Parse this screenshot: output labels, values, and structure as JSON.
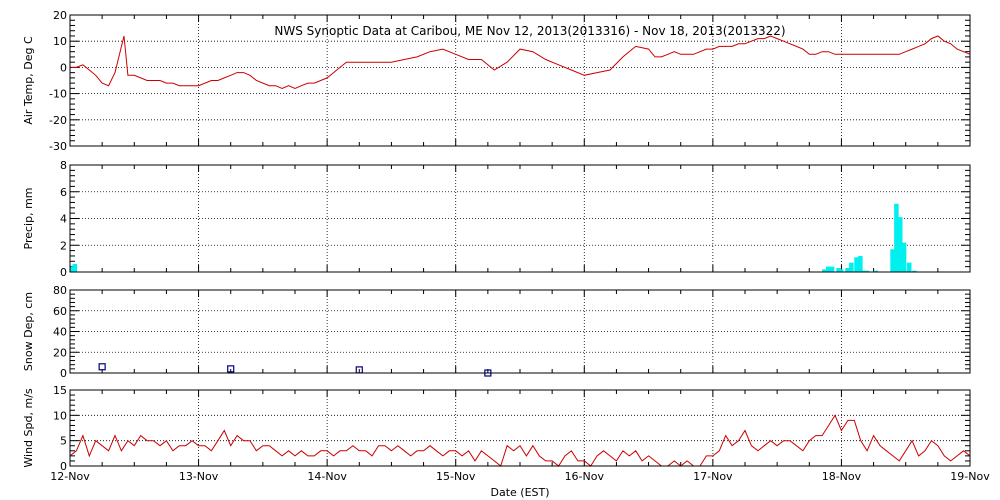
{
  "title": "NWS Synoptic Data at Caribou, ME    Nov 12, 2013(2013316) - Nov 18, 2013(2013322)",
  "xlabel": "Date (EST)",
  "x_ticks": [
    "12-Nov",
    "13-Nov",
    "14-Nov",
    "15-Nov",
    "16-Nov",
    "17-Nov",
    "18-Nov",
    "19-Nov"
  ],
  "colors": {
    "line": "#cc0000",
    "precip": "#00f0f0",
    "snow": "#000080"
  },
  "chart_data": [
    {
      "type": "line",
      "ylabel": "Air Temp, Deg C",
      "ylim": [
        -30,
        20
      ],
      "yticks": [
        -30,
        -20,
        -10,
        0,
        10,
        20
      ],
      "series": [
        {
          "x": [
            0,
            0.05,
            0.1,
            0.15,
            0.2,
            0.25,
            0.3,
            0.35,
            0.42,
            0.45,
            0.5,
            0.55,
            0.6,
            0.65,
            0.7,
            0.75,
            0.8,
            0.85,
            0.9,
            0.95,
            1.0,
            1.05,
            1.1,
            1.15,
            1.2,
            1.25,
            1.3,
            1.35,
            1.4,
            1.45,
            1.5,
            1.55,
            1.6,
            1.65,
            1.7,
            1.75,
            1.8,
            1.85,
            1.9,
            1.95,
            2.0,
            2.05,
            2.1,
            2.15,
            2.2,
            2.25,
            2.3,
            2.35,
            2.4,
            2.45,
            2.5,
            2.6,
            2.7,
            2.8,
            2.9,
            3.0,
            3.1,
            3.2,
            3.3,
            3.4,
            3.5,
            3.6,
            3.7,
            3.8,
            3.9,
            4.0,
            4.1,
            4.2,
            4.3,
            4.4,
            4.5,
            4.55,
            4.6,
            4.65,
            4.7,
            4.75,
            4.8,
            4.85,
            4.9,
            4.95,
            5.0,
            5.05,
            5.1,
            5.15,
            5.2,
            5.25,
            5.3,
            5.35,
            5.4,
            5.45,
            5.5,
            5.55,
            5.6,
            5.65,
            5.7,
            5.75,
            5.8,
            5.85,
            5.9,
            5.95,
            6.0,
            6.1,
            6.2,
            6.3,
            6.4,
            6.45,
            6.5,
            6.55,
            6.6,
            6.65,
            6.7,
            6.75,
            6.8,
            6.85,
            6.9,
            6.95,
            7.0
          ],
          "y": [
            0,
            0,
            1,
            -1,
            -3,
            -6,
            -7,
            -2,
            12,
            -3,
            -3,
            -4,
            -5,
            -5,
            -5,
            -6,
            -6,
            -7,
            -7,
            -7,
            -7,
            -6,
            -5,
            -5,
            -4,
            -3,
            -2,
            -2,
            -3,
            -5,
            -6,
            -7,
            -7,
            -8,
            -7,
            -8,
            -7,
            -6,
            -6,
            -5,
            -4,
            -2,
            0,
            2,
            2,
            2,
            2,
            2,
            2,
            2,
            2,
            3,
            4,
            6,
            7,
            5,
            3,
            3,
            -1,
            2,
            7,
            6,
            3,
            1,
            -1,
            -3,
            -2,
            -1,
            4,
            8,
            7,
            4,
            4,
            5,
            6,
            5,
            5,
            5,
            6,
            7,
            7,
            8,
            8,
            8,
            9,
            9,
            10,
            11,
            11,
            12,
            11,
            10,
            9,
            8,
            7,
            5,
            5,
            6,
            6,
            5,
            5,
            5,
            5,
            5,
            5,
            5,
            6,
            7,
            8,
            9,
            11,
            12,
            10,
            9,
            7,
            6,
            5
          ]
        }
      ]
    },
    {
      "type": "bar",
      "ylabel": "Precip, mm",
      "ylim": [
        0,
        8
      ],
      "yticks": [
        0,
        2,
        4,
        6,
        8
      ],
      "x": [
        0.0,
        0.02,
        5.85,
        5.88,
        5.91,
        5.96,
        5.98,
        6.03,
        6.06,
        6.1,
        6.13,
        6.15,
        6.18,
        6.25,
        6.38,
        6.41,
        6.44,
        6.47,
        6.51,
        6.55
      ],
      "values": [
        0.4,
        0.6,
        0.2,
        0.4,
        0.4,
        0.3,
        0.2,
        0.3,
        0.7,
        1.1,
        1.2,
        0.1,
        0.1,
        0.1,
        1.7,
        5.1,
        4.1,
        2.2,
        0.7,
        0.1
      ]
    },
    {
      "type": "scatter",
      "ylabel": "Snow Dep, cm",
      "ylim": [
        0,
        80
      ],
      "yticks": [
        0,
        20,
        40,
        60,
        80
      ],
      "x": [
        0.25,
        1.25,
        2.25,
        3.25
      ],
      "values": [
        6,
        4,
        3,
        0
      ]
    },
    {
      "type": "line",
      "ylabel": "Wind Spd, m/s",
      "ylim": [
        0,
        15
      ],
      "yticks": [
        0,
        5,
        10,
        15
      ],
      "series": [
        {
          "x": [
            0,
            0.05,
            0.1,
            0.15,
            0.2,
            0.25,
            0.3,
            0.35,
            0.4,
            0.45,
            0.5,
            0.55,
            0.6,
            0.65,
            0.7,
            0.75,
            0.8,
            0.85,
            0.9,
            0.95,
            1.0,
            1.05,
            1.1,
            1.15,
            1.2,
            1.25,
            1.3,
            1.35,
            1.4,
            1.45,
            1.5,
            1.55,
            1.6,
            1.65,
            1.7,
            1.75,
            1.8,
            1.85,
            1.9,
            1.95,
            2.0,
            2.05,
            2.1,
            2.15,
            2.2,
            2.25,
            2.3,
            2.35,
            2.4,
            2.45,
            2.5,
            2.55,
            2.6,
            2.65,
            2.7,
            2.75,
            2.8,
            2.85,
            2.9,
            2.95,
            3.0,
            3.05,
            3.1,
            3.15,
            3.2,
            3.25,
            3.3,
            3.35,
            3.4,
            3.45,
            3.5,
            3.55,
            3.6,
            3.65,
            3.7,
            3.75,
            3.8,
            3.85,
            3.9,
            3.95,
            4.0,
            4.05,
            4.1,
            4.15,
            4.2,
            4.25,
            4.3,
            4.35,
            4.4,
            4.45,
            4.5,
            4.55,
            4.6,
            4.65,
            4.7,
            4.75,
            4.8,
            4.85,
            4.9,
            4.95,
            5.0,
            5.05,
            5.1,
            5.15,
            5.2,
            5.25,
            5.3,
            5.35,
            5.4,
            5.45,
            5.5,
            5.55,
            5.6,
            5.65,
            5.7,
            5.75,
            5.8,
            5.85,
            5.9,
            5.95,
            6.0,
            6.05,
            6.1,
            6.15,
            6.2,
            6.25,
            6.3,
            6.35,
            6.4,
            6.45,
            6.5,
            6.55,
            6.6,
            6.65,
            6.7,
            6.75,
            6.8,
            6.85,
            6.9,
            6.95,
            7.0
          ],
          "y": [
            2,
            3,
            6,
            2,
            5,
            4,
            3,
            6,
            3,
            5,
            4,
            6,
            5,
            5,
            4,
            5,
            3,
            4,
            4,
            5,
            4,
            4,
            3,
            5,
            7,
            4,
            6,
            5,
            5,
            3,
            4,
            4,
            3,
            2,
            3,
            2,
            3,
            2,
            2,
            3,
            3,
            2,
            3,
            3,
            4,
            3,
            3,
            2,
            4,
            4,
            3,
            4,
            3,
            2,
            3,
            3,
            4,
            3,
            2,
            3,
            3,
            2,
            3,
            1,
            3,
            2,
            1,
            0,
            4,
            3,
            4,
            2,
            4,
            2,
            1,
            1,
            0,
            2,
            3,
            1,
            1,
            0,
            2,
            3,
            2,
            1,
            3,
            2,
            3,
            1,
            2,
            1,
            0,
            0,
            1,
            0,
            1,
            0,
            0,
            2,
            2,
            3,
            6,
            4,
            5,
            7,
            4,
            3,
            4,
            5,
            4,
            5,
            5,
            4,
            3,
            5,
            6,
            6,
            8,
            10,
            7,
            9,
            9,
            5,
            3,
            6,
            4,
            3,
            2,
            1,
            3,
            5,
            2,
            3,
            5,
            4,
            2,
            1,
            2,
            3,
            2
          ]
        }
      ]
    }
  ]
}
